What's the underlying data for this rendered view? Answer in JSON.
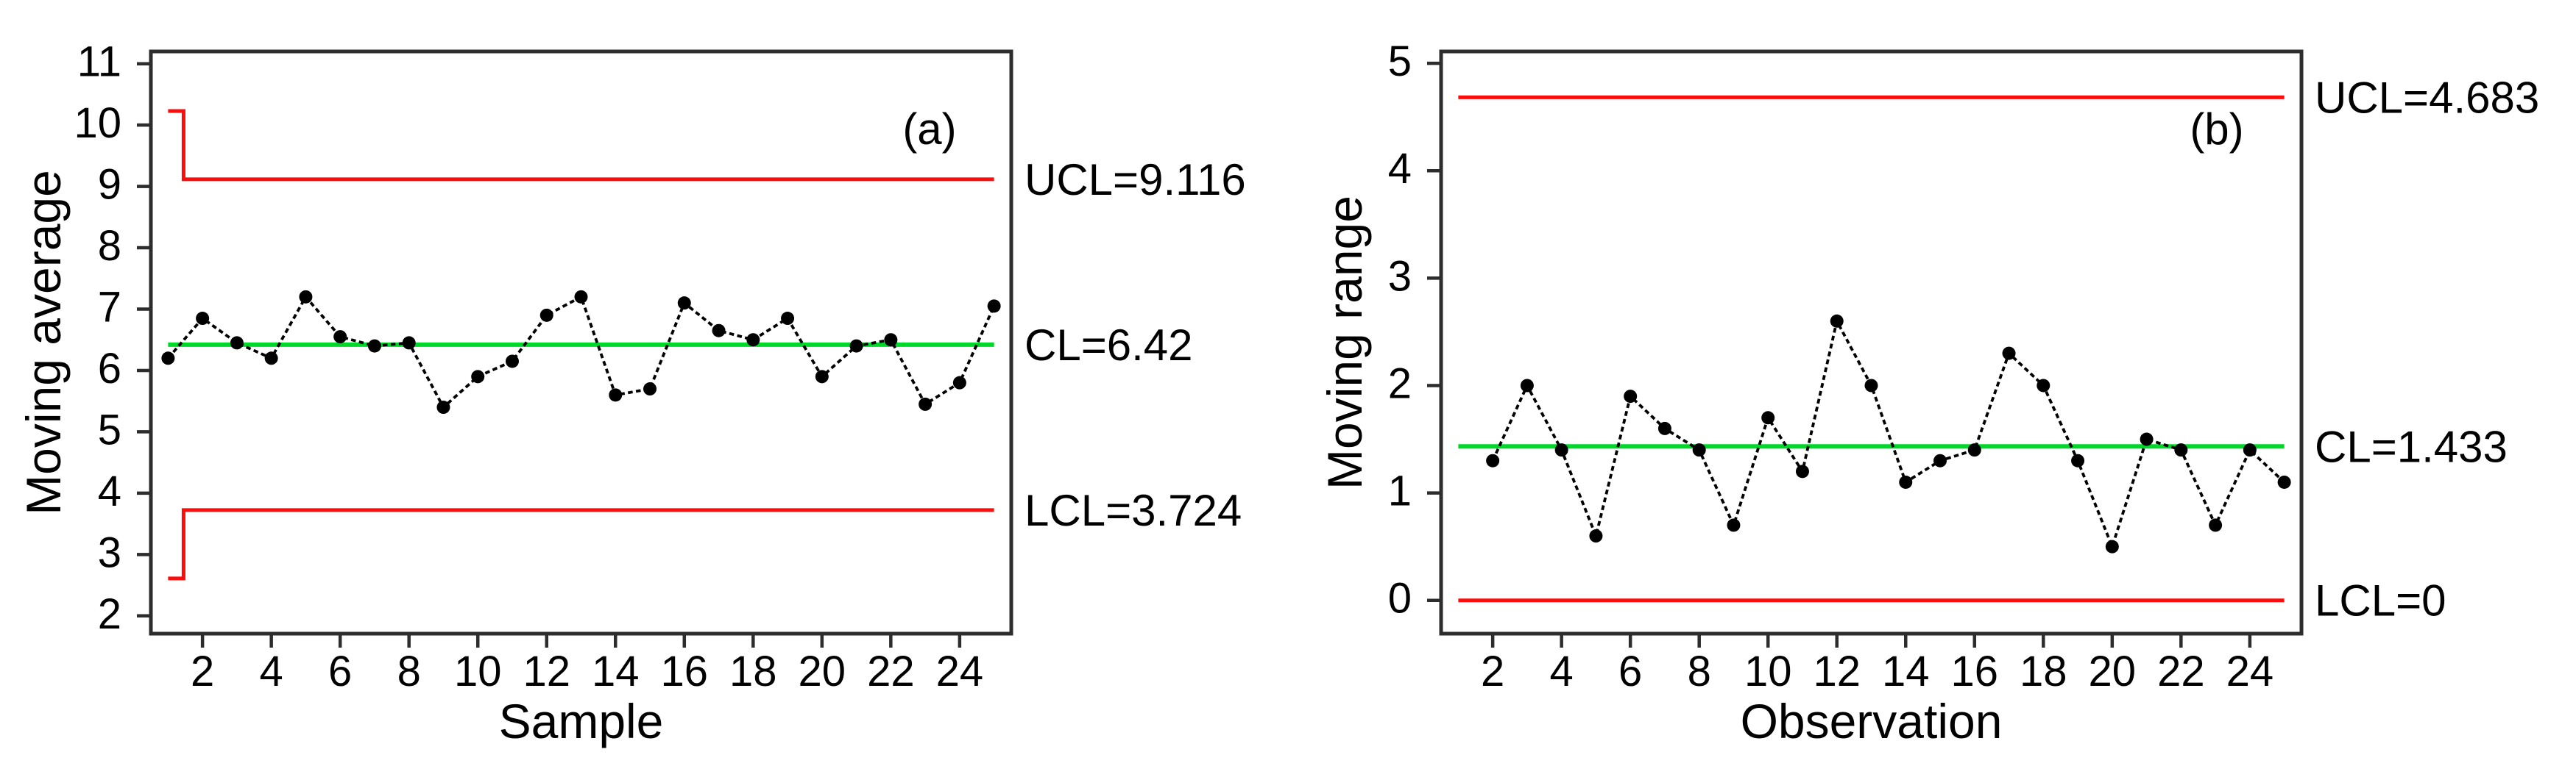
{
  "figure": {
    "background": "#ffffff",
    "description": "Two statistical process control charts side by side"
  },
  "colors": {
    "limit_line_red": "#f90d0d",
    "center_line_green": "#00d72b",
    "series_black": "#000000",
    "frame_gray": "#2d2d2d",
    "text_black": "#000000"
  },
  "chart_data": [
    {
      "type": "line",
      "panel_label": "(a)",
      "xlabel": "Sample",
      "ylabel": "Moving average",
      "xlim": [
        0.5,
        25.5
      ],
      "ylim": [
        1.71,
        11.2
      ],
      "x_ticks": [
        2,
        4,
        6,
        8,
        10,
        12,
        14,
        16,
        18,
        20,
        22,
        24
      ],
      "y_ticks": [
        2,
        3,
        4,
        5,
        6,
        7,
        8,
        9,
        10,
        11
      ],
      "grid": false,
      "legend": "none",
      "marker": "filled-circle",
      "line_style": "dotted",
      "x": [
        1,
        2,
        3,
        4,
        5,
        6,
        7,
        8,
        9,
        10,
        11,
        12,
        13,
        14,
        15,
        16,
        17,
        18,
        19,
        20,
        21,
        22,
        23,
        24,
        25
      ],
      "values": [
        6.2,
        6.85,
        6.45,
        6.2,
        7.2,
        6.55,
        6.4,
        6.45,
        5.4,
        5.9,
        6.15,
        6.9,
        7.2,
        5.6,
        5.7,
        7.1,
        6.65,
        6.5,
        6.85,
        5.9,
        6.4,
        6.5,
        5.45,
        5.8,
        7.05
      ],
      "control_limits": {
        "span_x": [
          1,
          25
        ],
        "ucl": {
          "label": "UCL=9.116",
          "value": 9.116,
          "first_point_value": 10.23,
          "step_at_x": 1.45
        },
        "cl": {
          "label": "CL=6.42",
          "value": 6.42
        },
        "lcl": {
          "label": "LCL=3.724",
          "value": 3.724,
          "first_point_value": 2.61,
          "step_at_x": 1.45
        }
      }
    },
    {
      "type": "line",
      "panel_label": "(b)",
      "xlabel": "Observation",
      "ylabel": "Moving range",
      "xlim": [
        0.5,
        25.5
      ],
      "ylim": [
        -0.31,
        5.11
      ],
      "x_ticks": [
        2,
        4,
        6,
        8,
        10,
        12,
        14,
        16,
        18,
        20,
        22,
        24
      ],
      "y_ticks": [
        0,
        1,
        2,
        3,
        4,
        5
      ],
      "grid": false,
      "legend": "none",
      "marker": "filled-circle",
      "line_style": "dotted",
      "x": [
        2,
        3,
        4,
        5,
        6,
        7,
        8,
        9,
        10,
        11,
        12,
        13,
        14,
        15,
        16,
        17,
        18,
        19,
        20,
        21,
        22,
        23,
        24,
        25
      ],
      "values": [
        1.3,
        2.0,
        1.4,
        0.6,
        1.9,
        1.6,
        1.4,
        0.7,
        1.7,
        1.2,
        2.6,
        2.0,
        1.1,
        1.3,
        1.4,
        2.3,
        2.0,
        1.3,
        0.5,
        1.5,
        1.4,
        0.7,
        1.4,
        1.1
      ],
      "control_limits": {
        "span_x": [
          1,
          25
        ],
        "ucl": {
          "label": "UCL=4.683",
          "value": 4.683
        },
        "cl": {
          "label": "CL=1.433",
          "value": 1.433
        },
        "lcl": {
          "label": "LCL=0",
          "value": 0
        }
      }
    }
  ]
}
